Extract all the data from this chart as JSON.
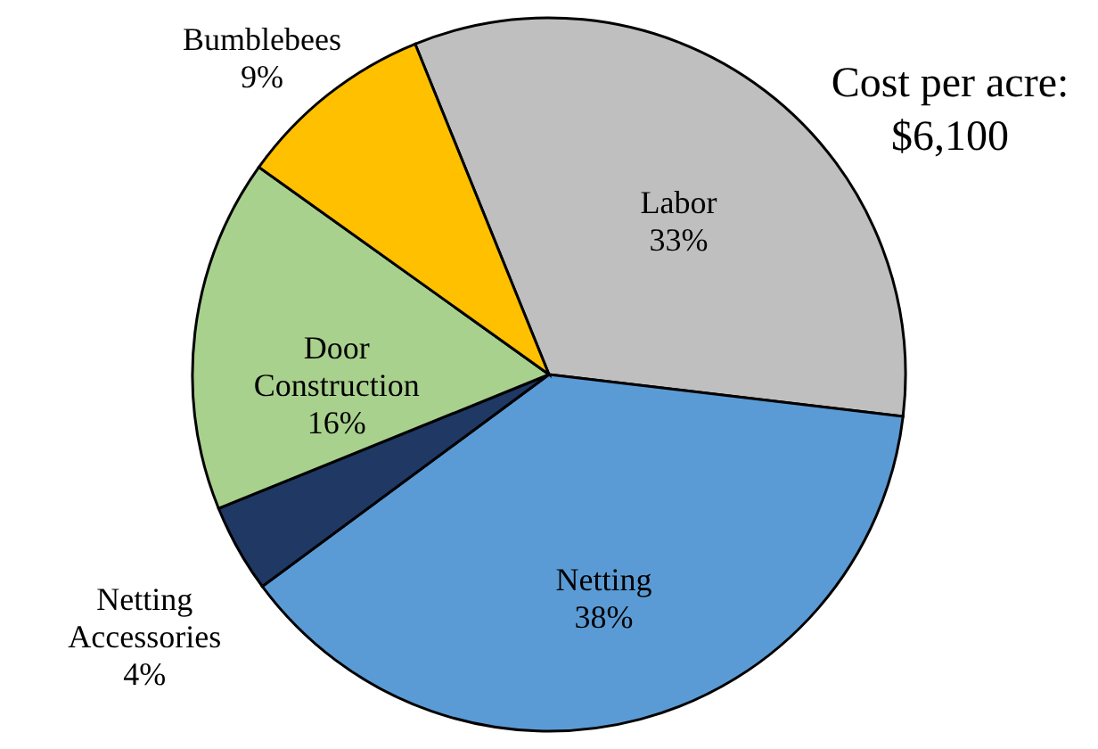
{
  "chart_data": {
    "type": "pie",
    "categories": [
      "Labor",
      "Netting",
      "Netting Accessories",
      "Door Construction",
      "Bumblebees"
    ],
    "values": [
      33,
      38,
      4,
      16,
      9
    ],
    "colors": [
      "#bfbfbf",
      "#5b9bd5",
      "#1f3864",
      "#a9d18e",
      "#ffc000"
    ],
    "value_labels": [
      "33%",
      "38%",
      "4%",
      "16%",
      "9%"
    ],
    "annotations": [
      "Cost per acre:",
      "$6,100"
    ]
  }
}
